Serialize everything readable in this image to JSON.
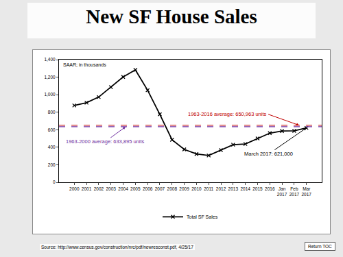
{
  "chart_data": {
    "type": "line",
    "title": "New SF House Sales",
    "categories": [
      "2000",
      "2001",
      "2002",
      "2003",
      "2004",
      "2005",
      "2006",
      "2007",
      "2008",
      "2009",
      "2010",
      "2011",
      "2012",
      "2013",
      "2014",
      "2015",
      "2016",
      "Jan 2017",
      "Feb 2017",
      "Mar 2017"
    ],
    "series": [
      {
        "name": "Total SF Sales",
        "color": "#000000",
        "marker": "x",
        "line_style": "solid",
        "values": [
          877,
          908,
          973,
          1086,
          1203,
          1283,
          1051,
          776,
          485,
          375,
          323,
          306,
          368,
          429,
          437,
          501,
          561,
          585,
          587,
          621
        ]
      }
    ],
    "ylim": [
      0,
      1400
    ],
    "yticks": [
      0,
      200,
      400,
      600,
      800,
      {
        "value": 1000,
        "label": "1,000"
      },
      {
        "value": 1200,
        "label": "1,200"
      },
      {
        "value": 1400,
        "label": "1,400"
      }
    ],
    "grid": false,
    "legend": "bottom",
    "note": "SAAR; in thousands",
    "reference_lines": [
      {
        "value": 650.963,
        "label": "1963-2016 average: 650,963 units",
        "color": "#c00000",
        "line_style": "dash"
      },
      {
        "value": 633.895,
        "label": "1963-2000 average: 633,895 units",
        "color": "#7030a0",
        "line_style": "dash"
      }
    ],
    "point_annotation": {
      "category": "Mar 2017",
      "text": "March 2017: 621,000"
    }
  },
  "source": "Source: http://www.census.gov/construction/nrc/pdf/newresconst.pdf, 4/25/17",
  "nav_button": "Return TOC"
}
